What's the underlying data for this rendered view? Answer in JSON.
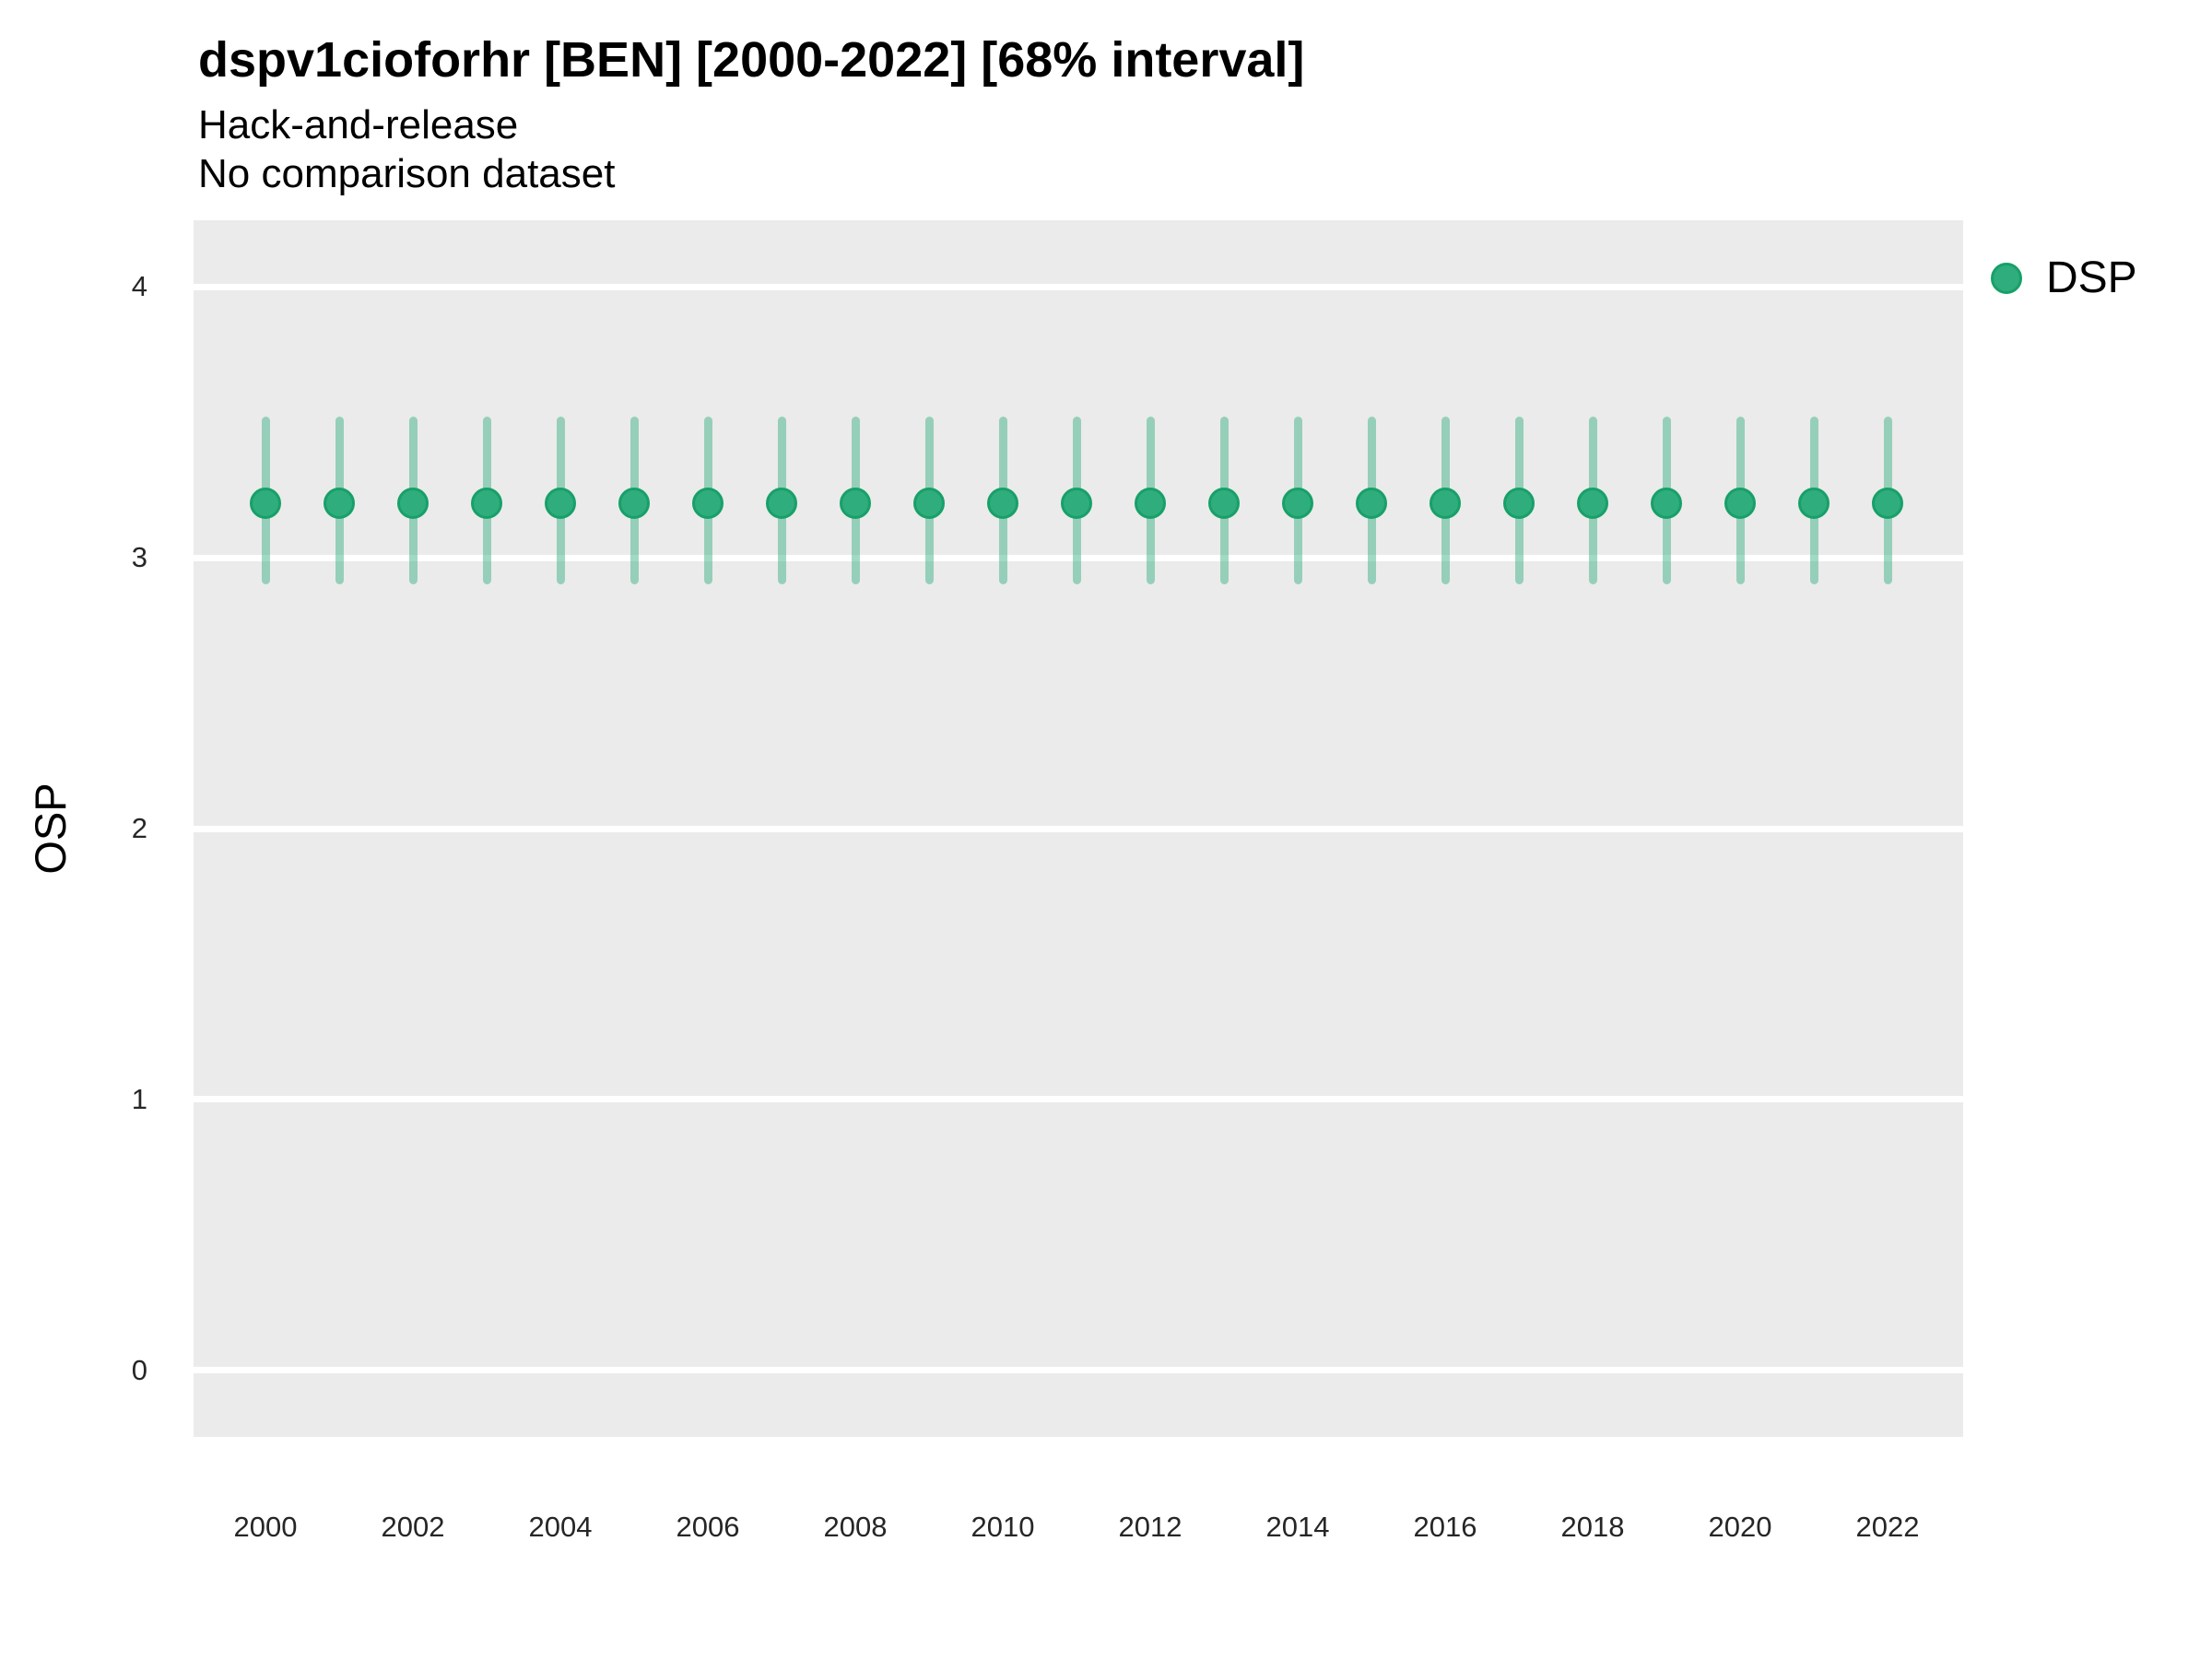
{
  "header": {
    "title": "dspv1cioforhr [BEN] [2000-2022] [68% interval]",
    "subtitle_line1": "Hack-and-release",
    "subtitle_line2": "No comparison dataset"
  },
  "y_axis": {
    "label": "OSP",
    "tick_labels": [
      "4",
      "3",
      "2",
      "1",
      "0"
    ]
  },
  "x_axis": {
    "tick_labels": [
      "2000",
      "2002",
      "2004",
      "2006",
      "2008",
      "2010",
      "2012",
      "2014",
      "2016",
      "2018",
      "2020",
      "2022"
    ]
  },
  "legend": {
    "position": "right-top",
    "items": [
      {
        "label": "DSP",
        "marker": "filled-circle",
        "marker_color": "#2FAD7D",
        "marker_stroke": "#18A069"
      }
    ]
  },
  "chart_data": {
    "type": "scatter",
    "title": "dspv1cioforhr [BEN] [2000-2022] [68% interval]",
    "subtitle": [
      "Hack-and-release",
      "No comparison dataset"
    ],
    "xlabel": "",
    "ylabel": "OSP",
    "interval_label": "68% interval",
    "grid": "horizontal-major-white-on-gray-panel",
    "legend_position": "right-top",
    "x": [
      2000,
      2001,
      2002,
      2003,
      2004,
      2005,
      2006,
      2007,
      2008,
      2009,
      2010,
      2011,
      2012,
      2013,
      2014,
      2015,
      2016,
      2017,
      2018,
      2019,
      2020,
      2021,
      2022
    ],
    "series": [
      {
        "name": "DSP",
        "values": [
          3.2,
          3.2,
          3.2,
          3.2,
          3.2,
          3.2,
          3.2,
          3.2,
          3.2,
          3.2,
          3.2,
          3.2,
          3.2,
          3.2,
          3.2,
          3.2,
          3.2,
          3.2,
          3.2,
          3.2,
          3.2,
          3.2,
          3.2
        ],
        "lower_68": [
          2.9,
          2.9,
          2.9,
          2.9,
          2.9,
          2.9,
          2.9,
          2.9,
          2.9,
          2.9,
          2.9,
          2.9,
          2.9,
          2.9,
          2.9,
          2.9,
          2.9,
          2.9,
          2.9,
          2.9,
          2.9,
          2.9,
          2.9
        ],
        "upper_68": [
          3.52,
          3.52,
          3.52,
          3.52,
          3.52,
          3.52,
          3.52,
          3.52,
          3.52,
          3.52,
          3.52,
          3.52,
          3.52,
          3.52,
          3.52,
          3.52,
          3.52,
          3.52,
          3.52,
          3.52,
          3.52,
          3.52,
          3.52
        ]
      }
    ],
    "x_ticks": [
      2000,
      2002,
      2004,
      2006,
      2008,
      2010,
      2012,
      2014,
      2016,
      2018,
      2020,
      2022
    ],
    "y_ticks": [
      0,
      1,
      2,
      3,
      4
    ],
    "ylim": [
      0,
      4
    ],
    "ylim_display": [
      -0.245,
      4.245
    ],
    "xlim_display": [
      1999.025,
      2023.025
    ],
    "colors": {
      "point_fill": "#2FAD7D",
      "point_stroke": "#18A069",
      "interval_bar": "rgba(47,173,125,0.45)",
      "panel_bg": "#EBEBEB",
      "gridline": "#FFFFFF"
    }
  }
}
